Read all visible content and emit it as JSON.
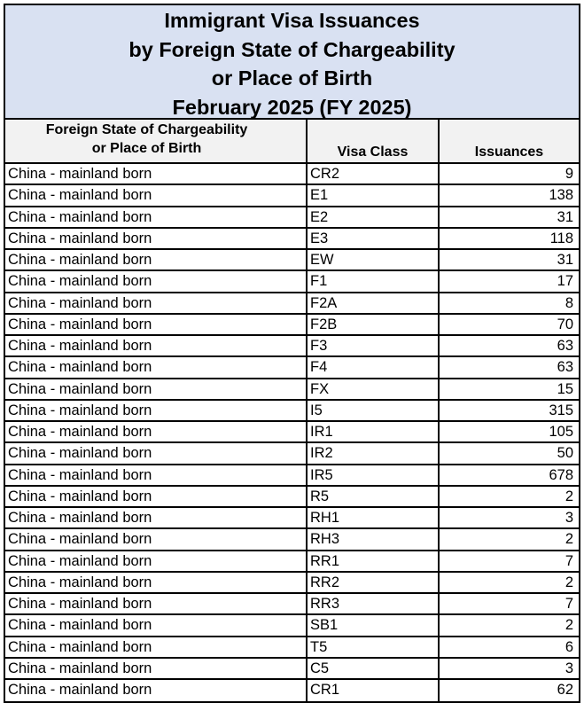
{
  "title": {
    "line1": "Immigrant Visa Issuances",
    "line2": "by Foreign State of Chargeability",
    "line3": "or Place of Birth",
    "line4": "February 2025 (FY 2025)"
  },
  "columns": {
    "place_line1": "Foreign State of Chargeability",
    "place_line2": "or Place of Birth",
    "visa_class": "Visa Class",
    "issuances": "Issuances"
  },
  "colors": {
    "title_bg": "#d9e1f2",
    "header_bg": "#f2f2f2"
  },
  "rows": [
    {
      "place": "China - mainland born",
      "visa_class": "CR2",
      "issuances": "9"
    },
    {
      "place": "China - mainland born",
      "visa_class": "E1",
      "issuances": "138"
    },
    {
      "place": "China - mainland born",
      "visa_class": "E2",
      "issuances": "31"
    },
    {
      "place": "China - mainland born",
      "visa_class": "E3",
      "issuances": "118"
    },
    {
      "place": "China - mainland born",
      "visa_class": "EW",
      "issuances": "31"
    },
    {
      "place": "China - mainland born",
      "visa_class": "F1",
      "issuances": "17"
    },
    {
      "place": "China - mainland born",
      "visa_class": "F2A",
      "issuances": "8"
    },
    {
      "place": "China - mainland born",
      "visa_class": "F2B",
      "issuances": "70"
    },
    {
      "place": "China - mainland born",
      "visa_class": "F3",
      "issuances": "63"
    },
    {
      "place": "China - mainland born",
      "visa_class": "F4",
      "issuances": "63"
    },
    {
      "place": "China - mainland born",
      "visa_class": "FX",
      "issuances": "15"
    },
    {
      "place": "China - mainland born",
      "visa_class": "I5",
      "issuances": "315"
    },
    {
      "place": "China - mainland born",
      "visa_class": "IR1",
      "issuances": "105"
    },
    {
      "place": "China - mainland born",
      "visa_class": "IR2",
      "issuances": "50"
    },
    {
      "place": "China - mainland born",
      "visa_class": "IR5",
      "issuances": "678"
    },
    {
      "place": "China - mainland born",
      "visa_class": "R5",
      "issuances": "2"
    },
    {
      "place": "China - mainland born",
      "visa_class": "RH1",
      "issuances": "3"
    },
    {
      "place": "China - mainland born",
      "visa_class": "RH3",
      "issuances": "2"
    },
    {
      "place": "China - mainland born",
      "visa_class": "RR1",
      "issuances": "7"
    },
    {
      "place": "China - mainland born",
      "visa_class": "RR2",
      "issuances": "2"
    },
    {
      "place": "China - mainland born",
      "visa_class": "RR3",
      "issuances": "7"
    },
    {
      "place": "China - mainland born",
      "visa_class": "SB1",
      "issuances": "2"
    },
    {
      "place": "China - mainland born",
      "visa_class": "T5",
      "issuances": "6"
    },
    {
      "place": "China - mainland born",
      "visa_class": "C5",
      "issuances": "3"
    },
    {
      "place": "China - mainland born",
      "visa_class": "CR1",
      "issuances": "62"
    }
  ]
}
